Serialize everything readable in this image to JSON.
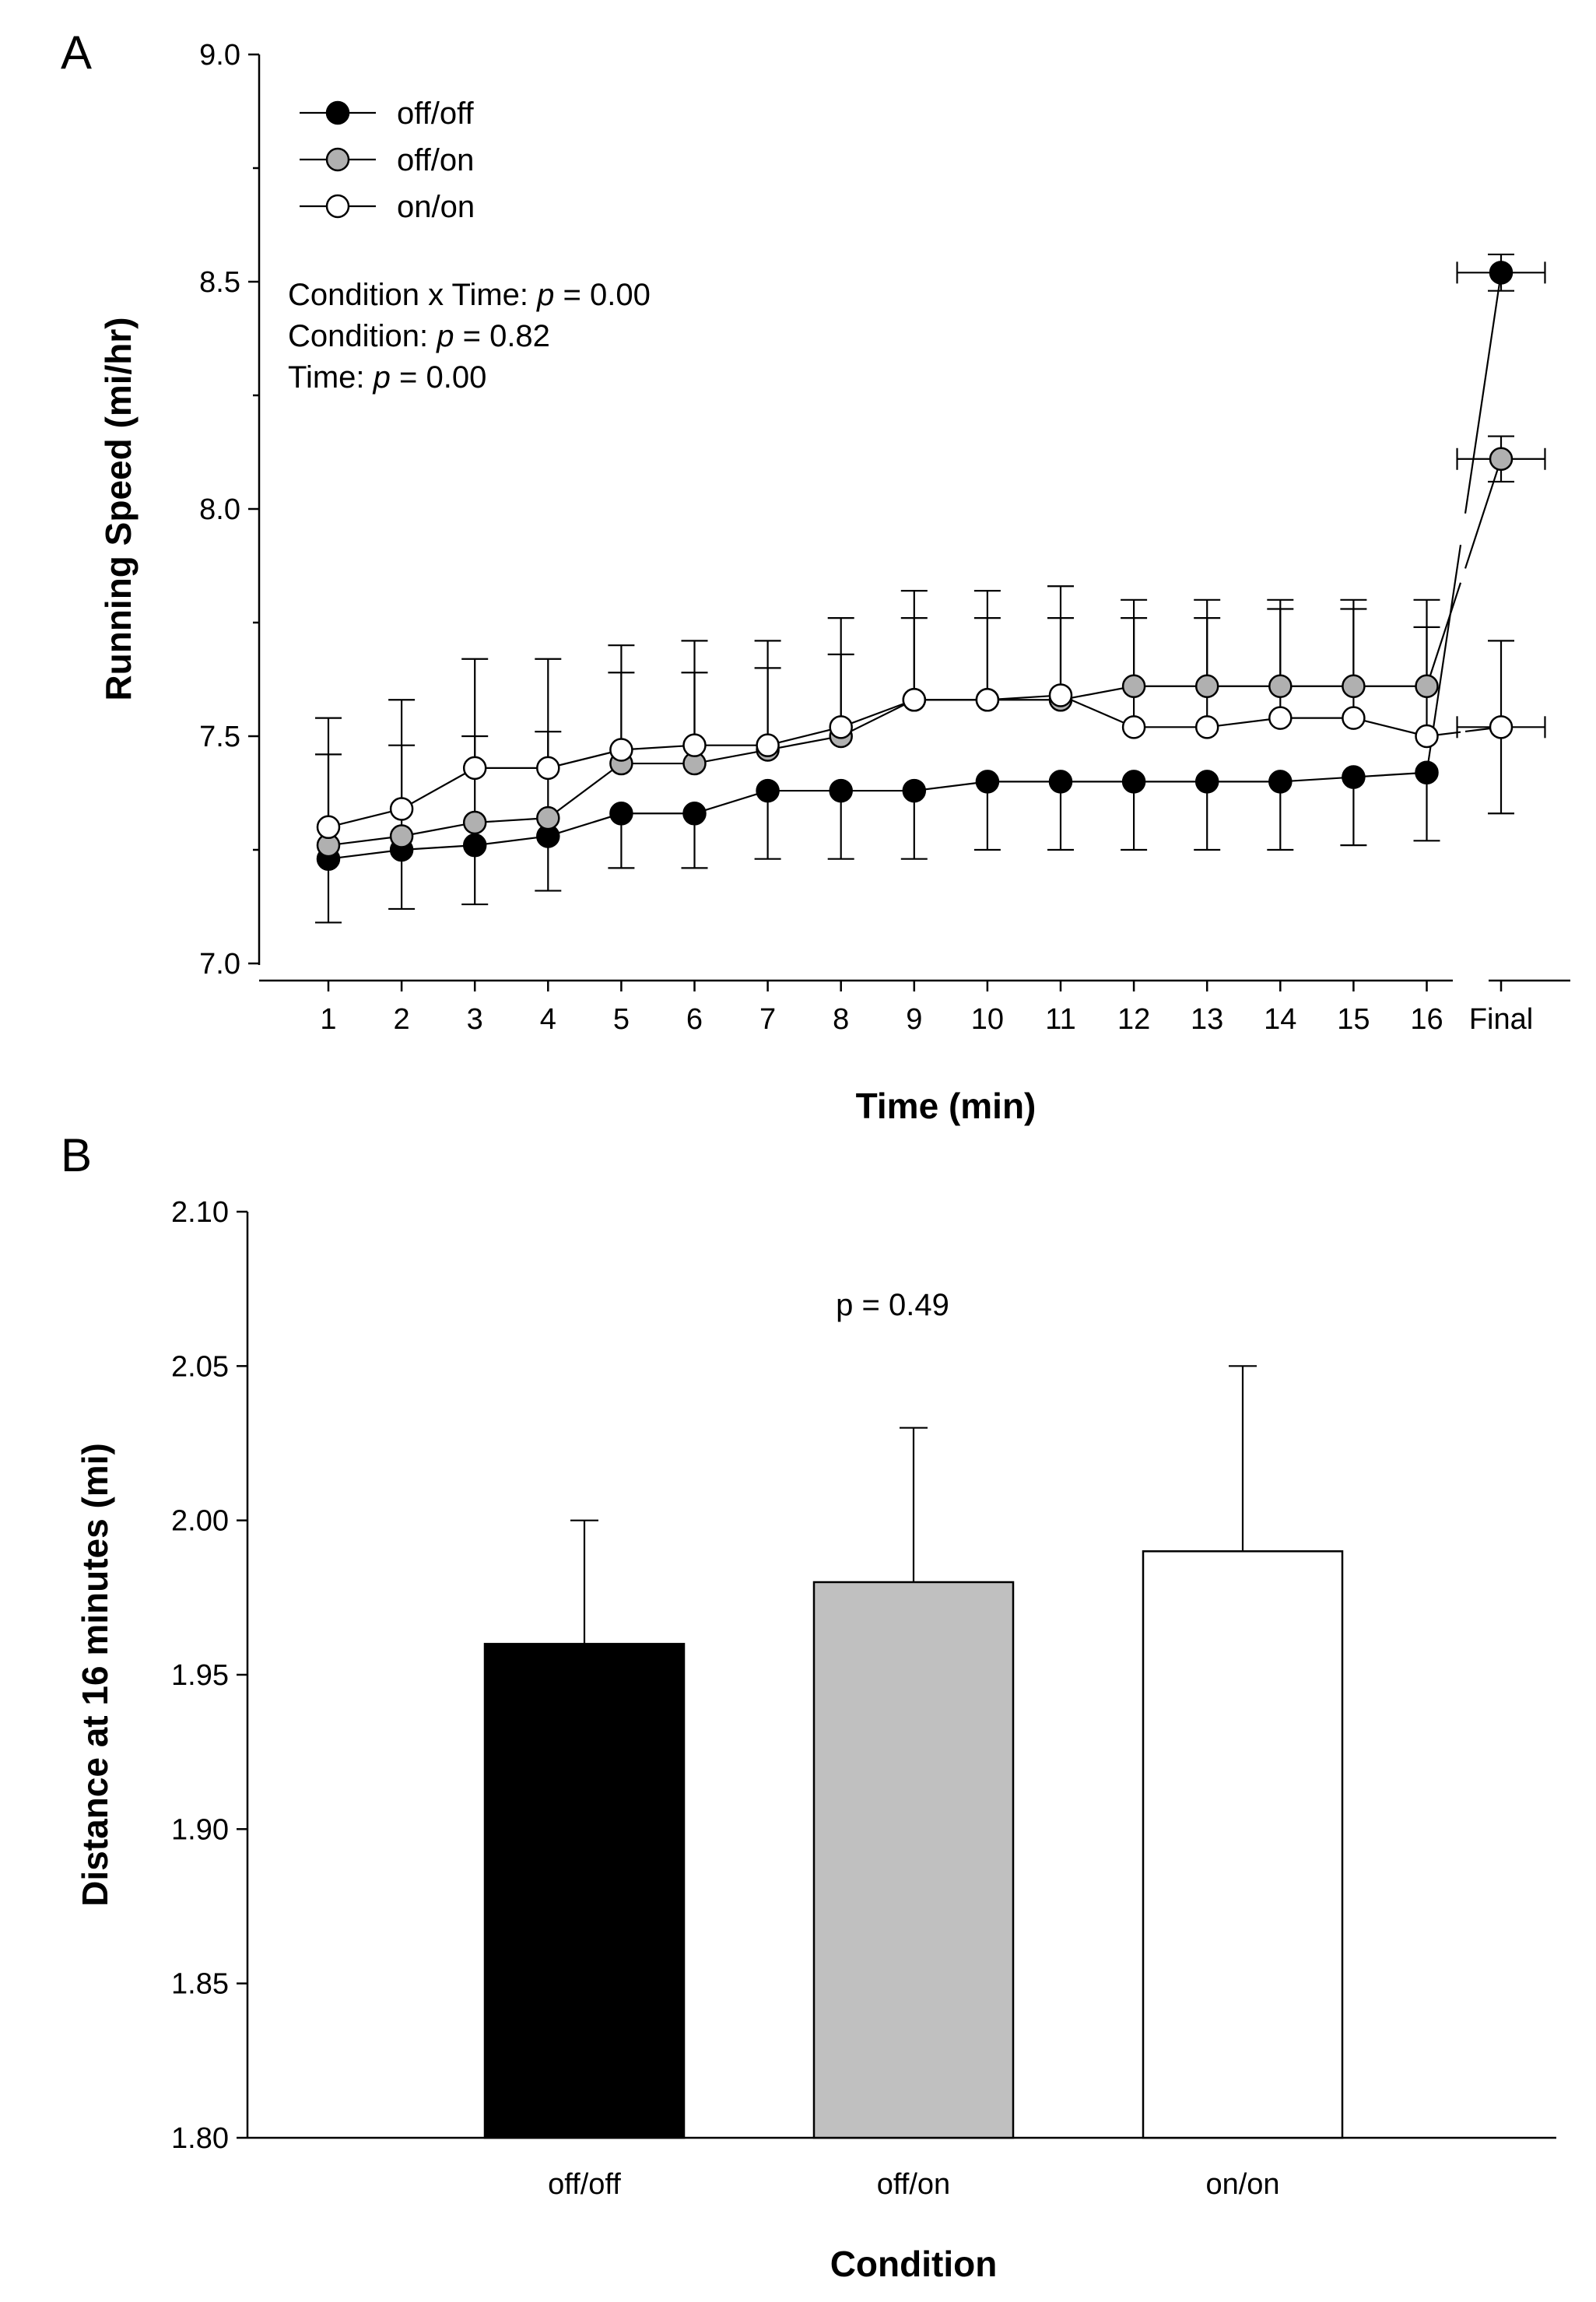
{
  "chart_data": [
    {
      "panel": "A",
      "type": "line",
      "xlabel": "Time (min)",
      "ylabel": "Running Speed (mi/hr)",
      "ylim": [
        7.0,
        9.0
      ],
      "yticks": [
        "7.0",
        "7.5",
        "8.0",
        "8.5",
        "9.0"
      ],
      "categories": [
        "1",
        "2",
        "3",
        "4",
        "5",
        "6",
        "7",
        "8",
        "9",
        "10",
        "11",
        "12",
        "13",
        "14",
        "15",
        "16"
      ],
      "final_label": "Final",
      "legend": {
        "placement": "top-left"
      },
      "annotations": [
        {
          "prefix": "Condition x Time: ",
          "p": "p",
          "suffix": " = 0.00"
        },
        {
          "prefix": "Condition: ",
          "p": "p",
          "suffix": " = 0.82"
        },
        {
          "prefix": "Time: ",
          "p": "p",
          "suffix": " = 0.00"
        }
      ],
      "series": [
        {
          "name": "off/off",
          "fill": "#000000",
          "values": [
            7.23,
            7.25,
            7.26,
            7.28,
            7.33,
            7.33,
            7.38,
            7.38,
            7.38,
            7.4,
            7.4,
            7.4,
            7.4,
            7.4,
            7.41,
            7.42
          ],
          "error_lower": [
            0.14,
            0.13,
            0.13,
            0.12,
            0.12,
            0.12,
            0.15,
            0.15,
            0.15,
            0.15,
            0.15,
            0.15,
            0.15,
            0.15,
            0.15,
            0.15
          ],
          "final": 8.52,
          "final_err_y": 0.04,
          "final_err_x": 0.6
        },
        {
          "name": "off/on",
          "fill": "#b0b0b0",
          "values": [
            7.26,
            7.28,
            7.31,
            7.32,
            7.44,
            7.44,
            7.47,
            7.5,
            7.58,
            7.58,
            7.58,
            7.61,
            7.61,
            7.61,
            7.61,
            7.61
          ],
          "error_upper": [
            0.2,
            0.2,
            0.19,
            0.19,
            0.2,
            0.2,
            0.18,
            0.18,
            0.18,
            0.18,
            0.18,
            0.19,
            0.19,
            0.19,
            0.19,
            0.19
          ],
          "final": 8.11,
          "final_err_y": 0.05,
          "final_err_x": 0.6
        },
        {
          "name": "on/on",
          "fill": "#ffffff",
          "values": [
            7.3,
            7.34,
            7.43,
            7.43,
            7.47,
            7.48,
            7.48,
            7.52,
            7.58,
            7.58,
            7.59,
            7.52,
            7.52,
            7.54,
            7.54,
            7.5
          ],
          "error_upper": [
            0.24,
            0.24,
            0.24,
            0.24,
            0.23,
            0.23,
            0.23,
            0.24,
            0.24,
            0.24,
            0.24,
            0.24,
            0.24,
            0.24,
            0.24,
            0.24
          ],
          "final": 7.52,
          "final_err_y": 0.19,
          "final_err_x": 0.6
        }
      ]
    },
    {
      "panel": "B",
      "type": "bar",
      "xlabel": "Condition",
      "ylabel": "Distance at 16 minutes (mi)",
      "ylim": [
        1.8,
        2.1
      ],
      "yticks": [
        "1.80",
        "1.85",
        "1.90",
        "1.95",
        "2.00",
        "2.05",
        "2.10"
      ],
      "categories": [
        "off/off",
        "off/on",
        "on/on"
      ],
      "values": [
        1.96,
        1.98,
        1.99
      ],
      "error_upper": [
        0.04,
        0.05,
        0.06
      ],
      "colors": [
        "#000000",
        "#c0c0c0",
        "#ffffff"
      ],
      "annotation": "p = 0.49"
    }
  ]
}
